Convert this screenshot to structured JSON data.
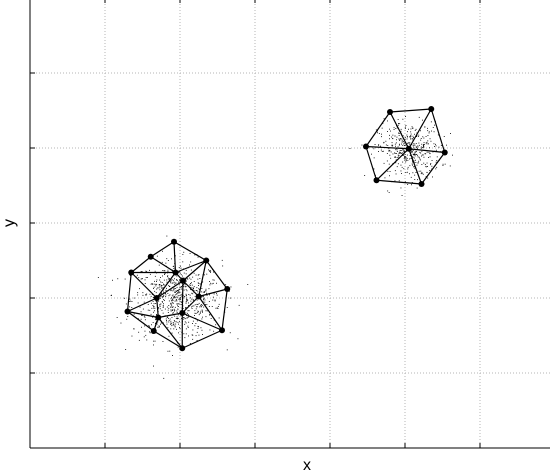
{
  "chart_data": {
    "type": "scatter",
    "xlabel": "x",
    "ylabel": "y",
    "xlim": [
      0,
      7
    ],
    "ylim": [
      0,
      6
    ],
    "xticks": [
      1,
      2,
      3,
      4,
      5,
      6
    ],
    "yticks": [
      1,
      2,
      3,
      4,
      5
    ],
    "grid": true,
    "tick_labels_shown": false,
    "series": [
      {
        "kind": "point-cloud",
        "clusters": [
          {
            "center": [
              1.95,
              1.98
            ],
            "spread": [
              0.6,
              0.52
            ],
            "count": 750
          },
          {
            "center": [
              5.05,
              3.97
            ],
            "spread": [
              0.42,
              0.38
            ],
            "count": 420
          }
        ],
        "color": "#000000"
      },
      {
        "kind": "mesh-nodes",
        "color": "#000000",
        "points": [
          [
            1.92,
            2.75
          ],
          [
            1.61,
            2.55
          ],
          [
            1.35,
            2.34
          ],
          [
            1.94,
            2.34
          ],
          [
            2.35,
            2.5
          ],
          [
            2.63,
            2.12
          ],
          [
            2.25,
            2.02
          ],
          [
            1.69,
            2.0
          ],
          [
            2.04,
            2.23
          ],
          [
            1.3,
            1.82
          ],
          [
            1.71,
            1.74
          ],
          [
            2.03,
            1.8
          ],
          [
            2.56,
            1.57
          ],
          [
            1.65,
            1.56
          ],
          [
            2.03,
            1.33
          ],
          [
            4.8,
            4.48
          ],
          [
            5.35,
            4.52
          ],
          [
            4.48,
            4.02
          ],
          [
            5.05,
            3.99
          ],
          [
            5.53,
            3.94
          ],
          [
            4.62,
            3.57
          ],
          [
            5.22,
            3.52
          ]
        ]
      },
      {
        "kind": "mesh-edges",
        "color": "#000000",
        "edges": [
          [
            0,
            1
          ],
          [
            1,
            2
          ],
          [
            0,
            3
          ],
          [
            1,
            3
          ],
          [
            2,
            3
          ],
          [
            0,
            4
          ],
          [
            3,
            4
          ],
          [
            4,
            5
          ],
          [
            3,
            8
          ],
          [
            4,
            8
          ],
          [
            8,
            6
          ],
          [
            4,
            6
          ],
          [
            5,
            6
          ],
          [
            2,
            7
          ],
          [
            3,
            7
          ],
          [
            7,
            8
          ],
          [
            2,
            9
          ],
          [
            7,
            9
          ],
          [
            7,
            10
          ],
          [
            9,
            10
          ],
          [
            8,
            11
          ],
          [
            6,
            11
          ],
          [
            10,
            11
          ],
          [
            5,
            12
          ],
          [
            6,
            12
          ],
          [
            11,
            12
          ],
          [
            9,
            13
          ],
          [
            10,
            13
          ],
          [
            13,
            14
          ],
          [
            11,
            14
          ],
          [
            10,
            14
          ],
          [
            12,
            14
          ],
          [
            15,
            16
          ],
          [
            15,
            17
          ],
          [
            15,
            18
          ],
          [
            16,
            18
          ],
          [
            16,
            19
          ],
          [
            18,
            19
          ],
          [
            17,
            18
          ],
          [
            17,
            20
          ],
          [
            18,
            20
          ],
          [
            20,
            21
          ],
          [
            18,
            21
          ],
          [
            19,
            21
          ]
        ]
      }
    ]
  }
}
